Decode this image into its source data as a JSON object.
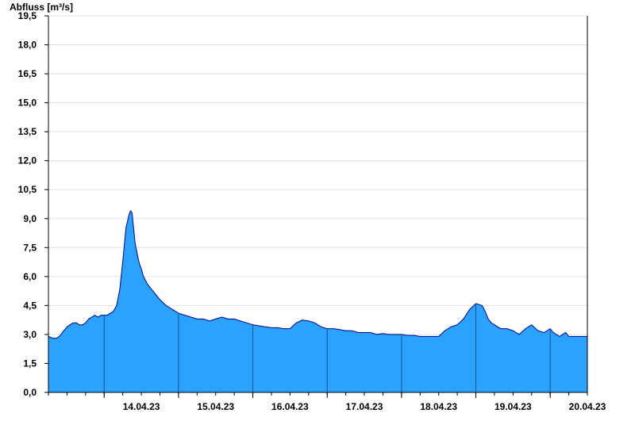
{
  "chart_data": {
    "type": "area",
    "ylabel": "Abfluss [m³/s]",
    "xlabel": "",
    "title": "",
    "ylim": [
      0,
      19.5
    ],
    "y_ticks": [
      0,
      1.5,
      3,
      4.5,
      6,
      7.5,
      9,
      10.5,
      12,
      13.5,
      15,
      16.5,
      18,
      19.5
    ],
    "y_tick_labels": [
      "0,0",
      "1,5",
      "3,0",
      "4,5",
      "6,0",
      "7,5",
      "9,0",
      "10,5",
      "12,0",
      "13,5",
      "15,0",
      "16,5",
      "18,0",
      "19,5"
    ],
    "x_range_days": [
      "13.04.23 06:00",
      "20.04.23 12:00"
    ],
    "x_tick_labels": [
      "14.04.23",
      "15.04.23",
      "16.04.23",
      "17.04.23",
      "18.04.23",
      "19.04.23",
      "20.04.23"
    ],
    "x_day_boundaries": [
      "14.04.23 00:00",
      "15.04.23 00:00",
      "16.04.23 00:00",
      "17.04.23 00:00",
      "18.04.23 00:00",
      "19.04.23 00:00",
      "20.04.23 00:00"
    ],
    "grid": true,
    "colors": {
      "fill": "#29a3ff",
      "line": "#00008b",
      "grid": "#e0e0e0",
      "day_line": "#1f4f8f"
    },
    "series": [
      {
        "x": [
          "13.04.23 06:00",
          "13.04.23 07:30",
          "13.04.23 08:30",
          "13.04.23 09:30",
          "13.04.23 10:30",
          "13.04.23 12:00",
          "13.04.23 13:00",
          "13.04.23 14:00",
          "13.04.23 15:00",
          "13.04.23 16:00",
          "13.04.23 17:00",
          "13.04.23 18:00",
          "13.04.23 19:00",
          "13.04.23 20:00",
          "13.04.23 21:00",
          "13.04.23 22:00",
          "13.04.23 23:00",
          "14.04.23 00:00",
          "14.04.23 01:00",
          "14.04.23 02:00",
          "14.04.23 03:00",
          "14.04.23 04:00",
          "14.04.23 05:00",
          "14.04.23 06:00",
          "14.04.23 07:00",
          "14.04.23 08:00",
          "14.04.23 08:30",
          "14.04.23 09:00",
          "14.04.23 09:30",
          "14.04.23 10:00",
          "14.04.23 11:00",
          "14.04.23 11:30",
          "14.04.23 12:00",
          "14.04.23 12:30",
          "14.04.23 13:00",
          "14.04.23 14:00",
          "14.04.23 15:00",
          "14.04.23 16:00",
          "14.04.23 17:00",
          "14.04.23 18:00",
          "14.04.23 20:00",
          "14.04.23 22:00",
          "15.04.23 00:00",
          "15.04.23 02:00",
          "15.04.23 04:00",
          "15.04.23 06:00",
          "15.04.23 08:00",
          "15.04.23 10:00",
          "15.04.23 12:00",
          "15.04.23 14:00",
          "15.04.23 16:00",
          "15.04.23 18:00",
          "15.04.23 20:00",
          "15.04.23 22:00",
          "16.04.23 00:00",
          "16.04.23 02:00",
          "16.04.23 04:00",
          "16.04.23 06:00",
          "16.04.23 08:00",
          "16.04.23 10:00",
          "16.04.23 12:00",
          "16.04.23 14:00",
          "16.04.23 16:00",
          "16.04.23 18:00",
          "16.04.23 20:00",
          "16.04.23 22:00",
          "17.04.23 00:00",
          "17.04.23 02:00",
          "17.04.23 04:00",
          "17.04.23 06:00",
          "17.04.23 08:00",
          "17.04.23 10:00",
          "17.04.23 12:00",
          "17.04.23 14:00",
          "17.04.23 16:00",
          "17.04.23 18:00",
          "17.04.23 20:00",
          "17.04.23 22:00",
          "18.04.23 00:00",
          "18.04.23 02:00",
          "18.04.23 04:00",
          "18.04.23 06:00",
          "18.04.23 08:00",
          "18.04.23 10:00",
          "18.04.23 12:00",
          "18.04.23 14:00",
          "18.04.23 16:00",
          "18.04.23 18:00",
          "18.04.23 20:00",
          "18.04.23 22:00",
          "19.04.23 00:00",
          "19.04.23 02:00",
          "19.04.23 03:00",
          "19.04.23 04:00",
          "19.04.23 05:00",
          "19.04.23 06:00",
          "19.04.23 07:00",
          "19.04.23 08:00",
          "19.04.23 10:00",
          "19.04.23 12:00",
          "19.04.23 14:00",
          "19.04.23 16:00",
          "19.04.23 18:00",
          "19.04.23 20:00",
          "19.04.23 22:00",
          "20.04.23 00:00",
          "20.04.23 01:00",
          "20.04.23 02:00",
          "20.04.23 03:00",
          "20.04.23 04:00",
          "20.04.23 05:00",
          "20.04.23 06:00",
          "20.04.23 07:00",
          "20.04.23 08:00",
          "20.04.23 09:00",
          "20.04.23 10:00",
          "20.04.23 11:00",
          "20.04.23 12:00"
        ],
        "y": [
          2.9,
          2.8,
          2.8,
          2.9,
          3.1,
          3.4,
          3.5,
          3.6,
          3.6,
          3.5,
          3.5,
          3.6,
          3.8,
          3.9,
          4.0,
          3.9,
          4.0,
          4.0,
          4.0,
          4.1,
          4.2,
          4.5,
          5.3,
          6.8,
          8.5,
          9.2,
          9.4,
          9.3,
          8.5,
          7.7,
          6.9,
          6.6,
          6.4,
          6.1,
          5.9,
          5.6,
          5.4,
          5.2,
          5.0,
          4.8,
          4.5,
          4.3,
          4.1,
          4.0,
          3.9,
          3.8,
          3.8,
          3.7,
          3.8,
          3.9,
          3.8,
          3.8,
          3.7,
          3.6,
          3.5,
          3.45,
          3.4,
          3.35,
          3.35,
          3.3,
          3.3,
          3.6,
          3.75,
          3.7,
          3.6,
          3.4,
          3.3,
          3.3,
          3.25,
          3.2,
          3.2,
          3.1,
          3.1,
          3.1,
          3.0,
          3.05,
          3.0,
          3.0,
          3.0,
          2.95,
          2.95,
          2.9,
          2.9,
          2.9,
          2.9,
          3.2,
          3.4,
          3.5,
          3.8,
          4.3,
          4.6,
          4.5,
          4.2,
          3.8,
          3.6,
          3.5,
          3.4,
          3.3,
          3.3,
          3.2,
          3.0,
          3.3,
          3.5,
          3.2,
          3.1,
          3.3,
          3.1,
          3.0,
          2.9,
          3.0,
          3.1,
          2.9,
          2.9,
          2.9,
          2.9,
          2.9,
          2.9,
          2.9
        ]
      }
    ]
  }
}
